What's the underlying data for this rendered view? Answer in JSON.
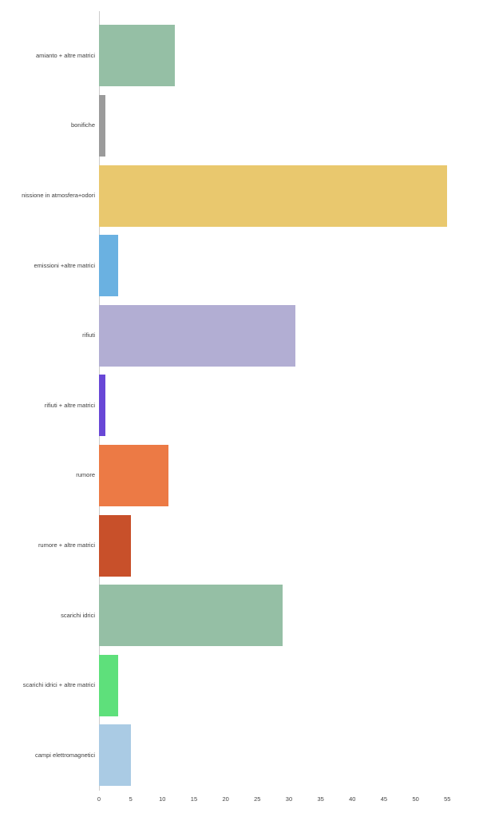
{
  "chart_data": {
    "type": "bar",
    "orientation": "horizontal",
    "title": "",
    "xlabel": "",
    "ylabel": "",
    "legend": "none",
    "grid": false,
    "background_color": "#ffffff",
    "axis_color": "#cccccc",
    "category_label_color": "#3d3d3d",
    "tick_label_color": "#444444",
    "categories": [
      "amianto + altre matrici",
      "bonifiche",
      "nissione in atmosfera+odori",
      "emissioni +altre matrici",
      "rifiuti",
      "rifiuti + altre matrici",
      "rumore",
      "rumore + altre matrici",
      "scarichi idrici",
      "scarichi idrici + altre matrici",
      "campi elettromagnetici"
    ],
    "values": [
      12,
      1,
      55,
      3,
      31,
      1,
      11,
      5,
      29,
      3,
      5
    ],
    "colors": [
      "#95bfa5",
      "#9b9b9b",
      "#e9c86e",
      "#6ab1e1",
      "#b2aed3",
      "#6847d6",
      "#ec7a45",
      "#c8502a",
      "#95bfa5",
      "#5ee07b",
      "#aacbe4"
    ],
    "xticks": [
      0,
      5,
      10,
      15,
      20,
      25,
      30,
      35,
      40,
      45,
      50,
      55
    ],
    "xlim": [
      0,
      59
    ]
  }
}
